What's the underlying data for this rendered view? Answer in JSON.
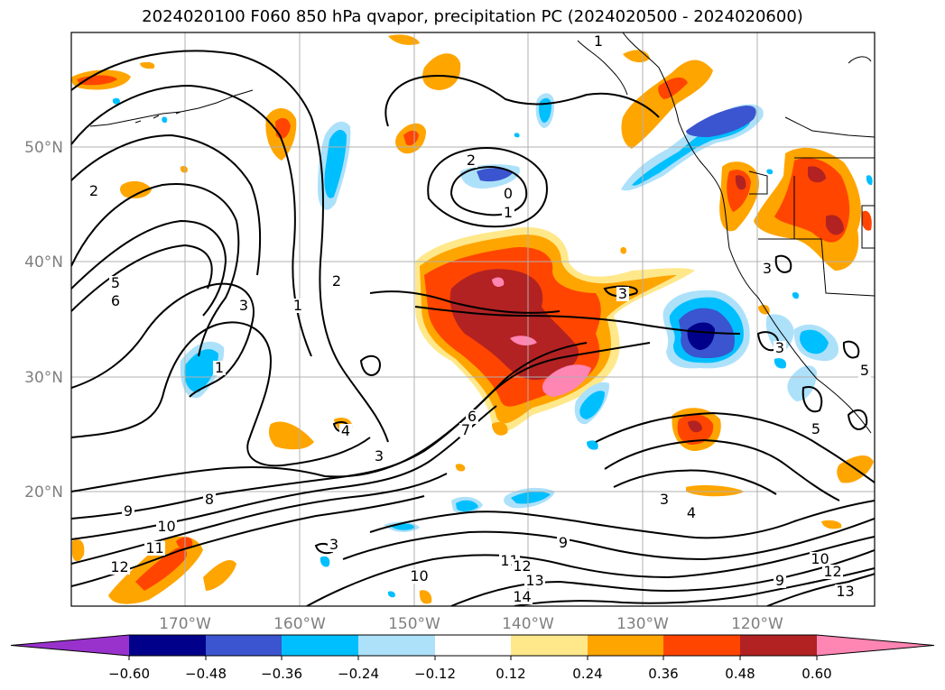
{
  "title": "2024020100 F060 850 hPa qvapor, precipitation PC (2024020500 - 2024020600)",
  "colors": {
    "neg_extend": "#9932CC",
    "neg_060": "#00008B",
    "neg_048": "#3A55CF",
    "neg_036": "#00BFFF",
    "neg_024": "#ADE1FA",
    "neutral": "#FFFFFF",
    "pos_012": "#FFE88A",
    "pos_024": "#FFA500",
    "pos_036": "#FF4500",
    "pos_048": "#B22222",
    "pos_060": "#FF85B3"
  },
  "map": {
    "projection": "lat-lon",
    "longitude_labels": [
      "170°W",
      "160°W",
      "150°W",
      "140°W",
      "130°W",
      "120°W"
    ],
    "latitude_labels": [
      "50°N",
      "40°N",
      "30°N",
      "20°N"
    ],
    "gridlines": true
  },
  "colorbar": {
    "tick_labels": [
      "−0.60",
      "−0.48",
      "−0.36",
      "−0.24",
      "−0.12",
      "0.12",
      "0.24",
      "0.36",
      "0.48",
      "0.60"
    ],
    "extend": "both"
  },
  "contour_labels": [
    "1",
    "2",
    "0",
    "1",
    "3",
    "5",
    "6",
    "3",
    "1",
    "2",
    "1",
    "4",
    "3",
    "3",
    "6",
    "7",
    "8",
    "9",
    "10",
    "11",
    "12",
    "9",
    "3",
    "4",
    "5",
    "3",
    "10",
    "11",
    "12",
    "13",
    "14",
    "9",
    "10",
    "12",
    "13",
    "3",
    "5",
    "2"
  ]
}
